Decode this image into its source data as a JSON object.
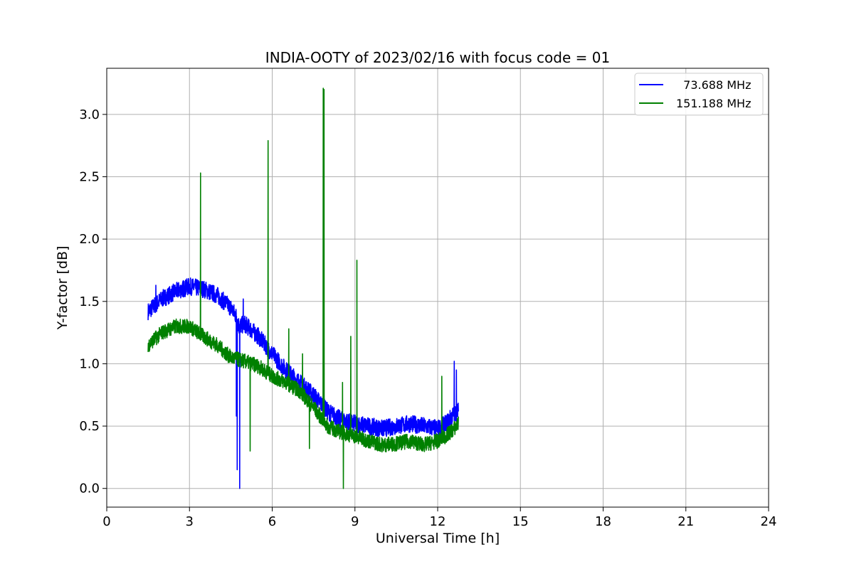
{
  "chart_data": {
    "type": "line",
    "title": "INDIA-OOTY of 2023/02/16 with focus code = 01",
    "xlabel": "Universal Time [h]",
    "ylabel": "Y-factor [dB]",
    "xlim": [
      0,
      24
    ],
    "ylim": [
      -0.15,
      3.37
    ],
    "xticks": [
      0,
      3,
      6,
      9,
      12,
      15,
      18,
      21,
      24
    ],
    "xtick_labels": [
      "0",
      "3",
      "6",
      "9",
      "12",
      "15",
      "18",
      "21",
      "24"
    ],
    "yticks": [
      0.0,
      0.5,
      1.0,
      1.5,
      2.0,
      2.5,
      3.0
    ],
    "ytick_labels": [
      "0.0",
      "0.5",
      "1.0",
      "1.5",
      "2.0",
      "2.5",
      "3.0"
    ],
    "grid": true,
    "legend_position": "top-right",
    "series": [
      {
        "name": "  73.688 MHz",
        "color": "#0000ff",
        "x": [
          1.5,
          2.0,
          2.5,
          3.0,
          3.5,
          4.0,
          4.5,
          4.7,
          4.8,
          5.0,
          5.5,
          6.0,
          6.5,
          7.0,
          7.5,
          8.0,
          8.5,
          9.0,
          9.5,
          10.0,
          10.5,
          11.0,
          11.5,
          12.0,
          12.3,
          12.6,
          12.75
        ],
        "values": [
          1.42,
          1.52,
          1.58,
          1.62,
          1.6,
          1.55,
          1.45,
          1.38,
          1.3,
          1.32,
          1.22,
          1.08,
          0.95,
          0.85,
          0.75,
          0.62,
          0.55,
          0.52,
          0.5,
          0.48,
          0.5,
          0.52,
          0.5,
          0.48,
          0.52,
          0.6,
          0.62
        ],
        "noise": 0.07,
        "spikes": [
          {
            "x": 1.78,
            "y": 1.63
          },
          {
            "x": 4.7,
            "y": 0.58
          },
          {
            "x": 4.73,
            "y": 0.15
          },
          {
            "x": 4.82,
            "y": 0.0
          },
          {
            "x": 4.95,
            "y": 1.52
          },
          {
            "x": 12.6,
            "y": 1.02
          },
          {
            "x": 12.68,
            "y": 0.95
          }
        ]
      },
      {
        "name": "151.188 MHz",
        "color": "#008000",
        "x": [
          1.5,
          2.0,
          2.5,
          3.0,
          3.5,
          4.0,
          4.5,
          5.0,
          5.5,
          6.0,
          6.5,
          7.0,
          7.5,
          8.0,
          8.5,
          9.0,
          9.5,
          10.0,
          10.5,
          11.0,
          11.5,
          12.0,
          12.3,
          12.6,
          12.75
        ],
        "values": [
          1.15,
          1.25,
          1.3,
          1.3,
          1.22,
          1.15,
          1.05,
          1.02,
          0.98,
          0.9,
          0.85,
          0.78,
          0.65,
          0.5,
          0.45,
          0.42,
          0.38,
          0.35,
          0.36,
          0.38,
          0.35,
          0.38,
          0.42,
          0.48,
          0.52
        ],
        "noise": 0.06,
        "spikes": [
          {
            "x": 3.4,
            "y": 2.53
          },
          {
            "x": 5.2,
            "y": 0.3
          },
          {
            "x": 5.85,
            "y": 2.79
          },
          {
            "x": 6.6,
            "y": 1.28
          },
          {
            "x": 7.1,
            "y": 1.08
          },
          {
            "x": 7.35,
            "y": 0.32
          },
          {
            "x": 7.85,
            "y": 3.21
          },
          {
            "x": 7.88,
            "y": 3.2
          },
          {
            "x": 8.55,
            "y": 0.85
          },
          {
            "x": 8.58,
            "y": 0.0
          },
          {
            "x": 8.85,
            "y": 1.22
          },
          {
            "x": 9.07,
            "y": 1.83
          },
          {
            "x": 12.15,
            "y": 0.9
          }
        ]
      }
    ]
  }
}
